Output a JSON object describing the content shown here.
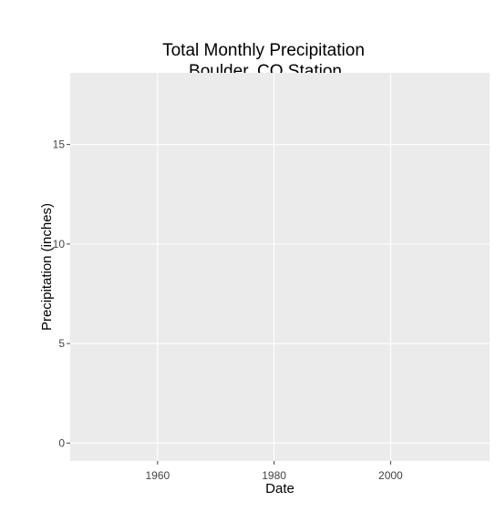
{
  "chart_data": {
    "type": "line",
    "title": [
      "Total Monthly Precipitation",
      "Boulder, CO Station"
    ],
    "xlabel": "Date",
    "ylabel": "Precipitation (inches)",
    "xlim": [
      1945,
      2017
    ],
    "ylim": [
      -0.9,
      18.6
    ],
    "x_ticks": [
      1960,
      1980,
      2000
    ],
    "y_ticks": [
      0,
      5,
      10,
      15
    ],
    "series": [],
    "grid": true,
    "legend": "none",
    "colors": {
      "panel_background": "#ebebeb",
      "grid_major": "#ffffff",
      "tick_text": "#444444",
      "text": "#000000"
    }
  }
}
